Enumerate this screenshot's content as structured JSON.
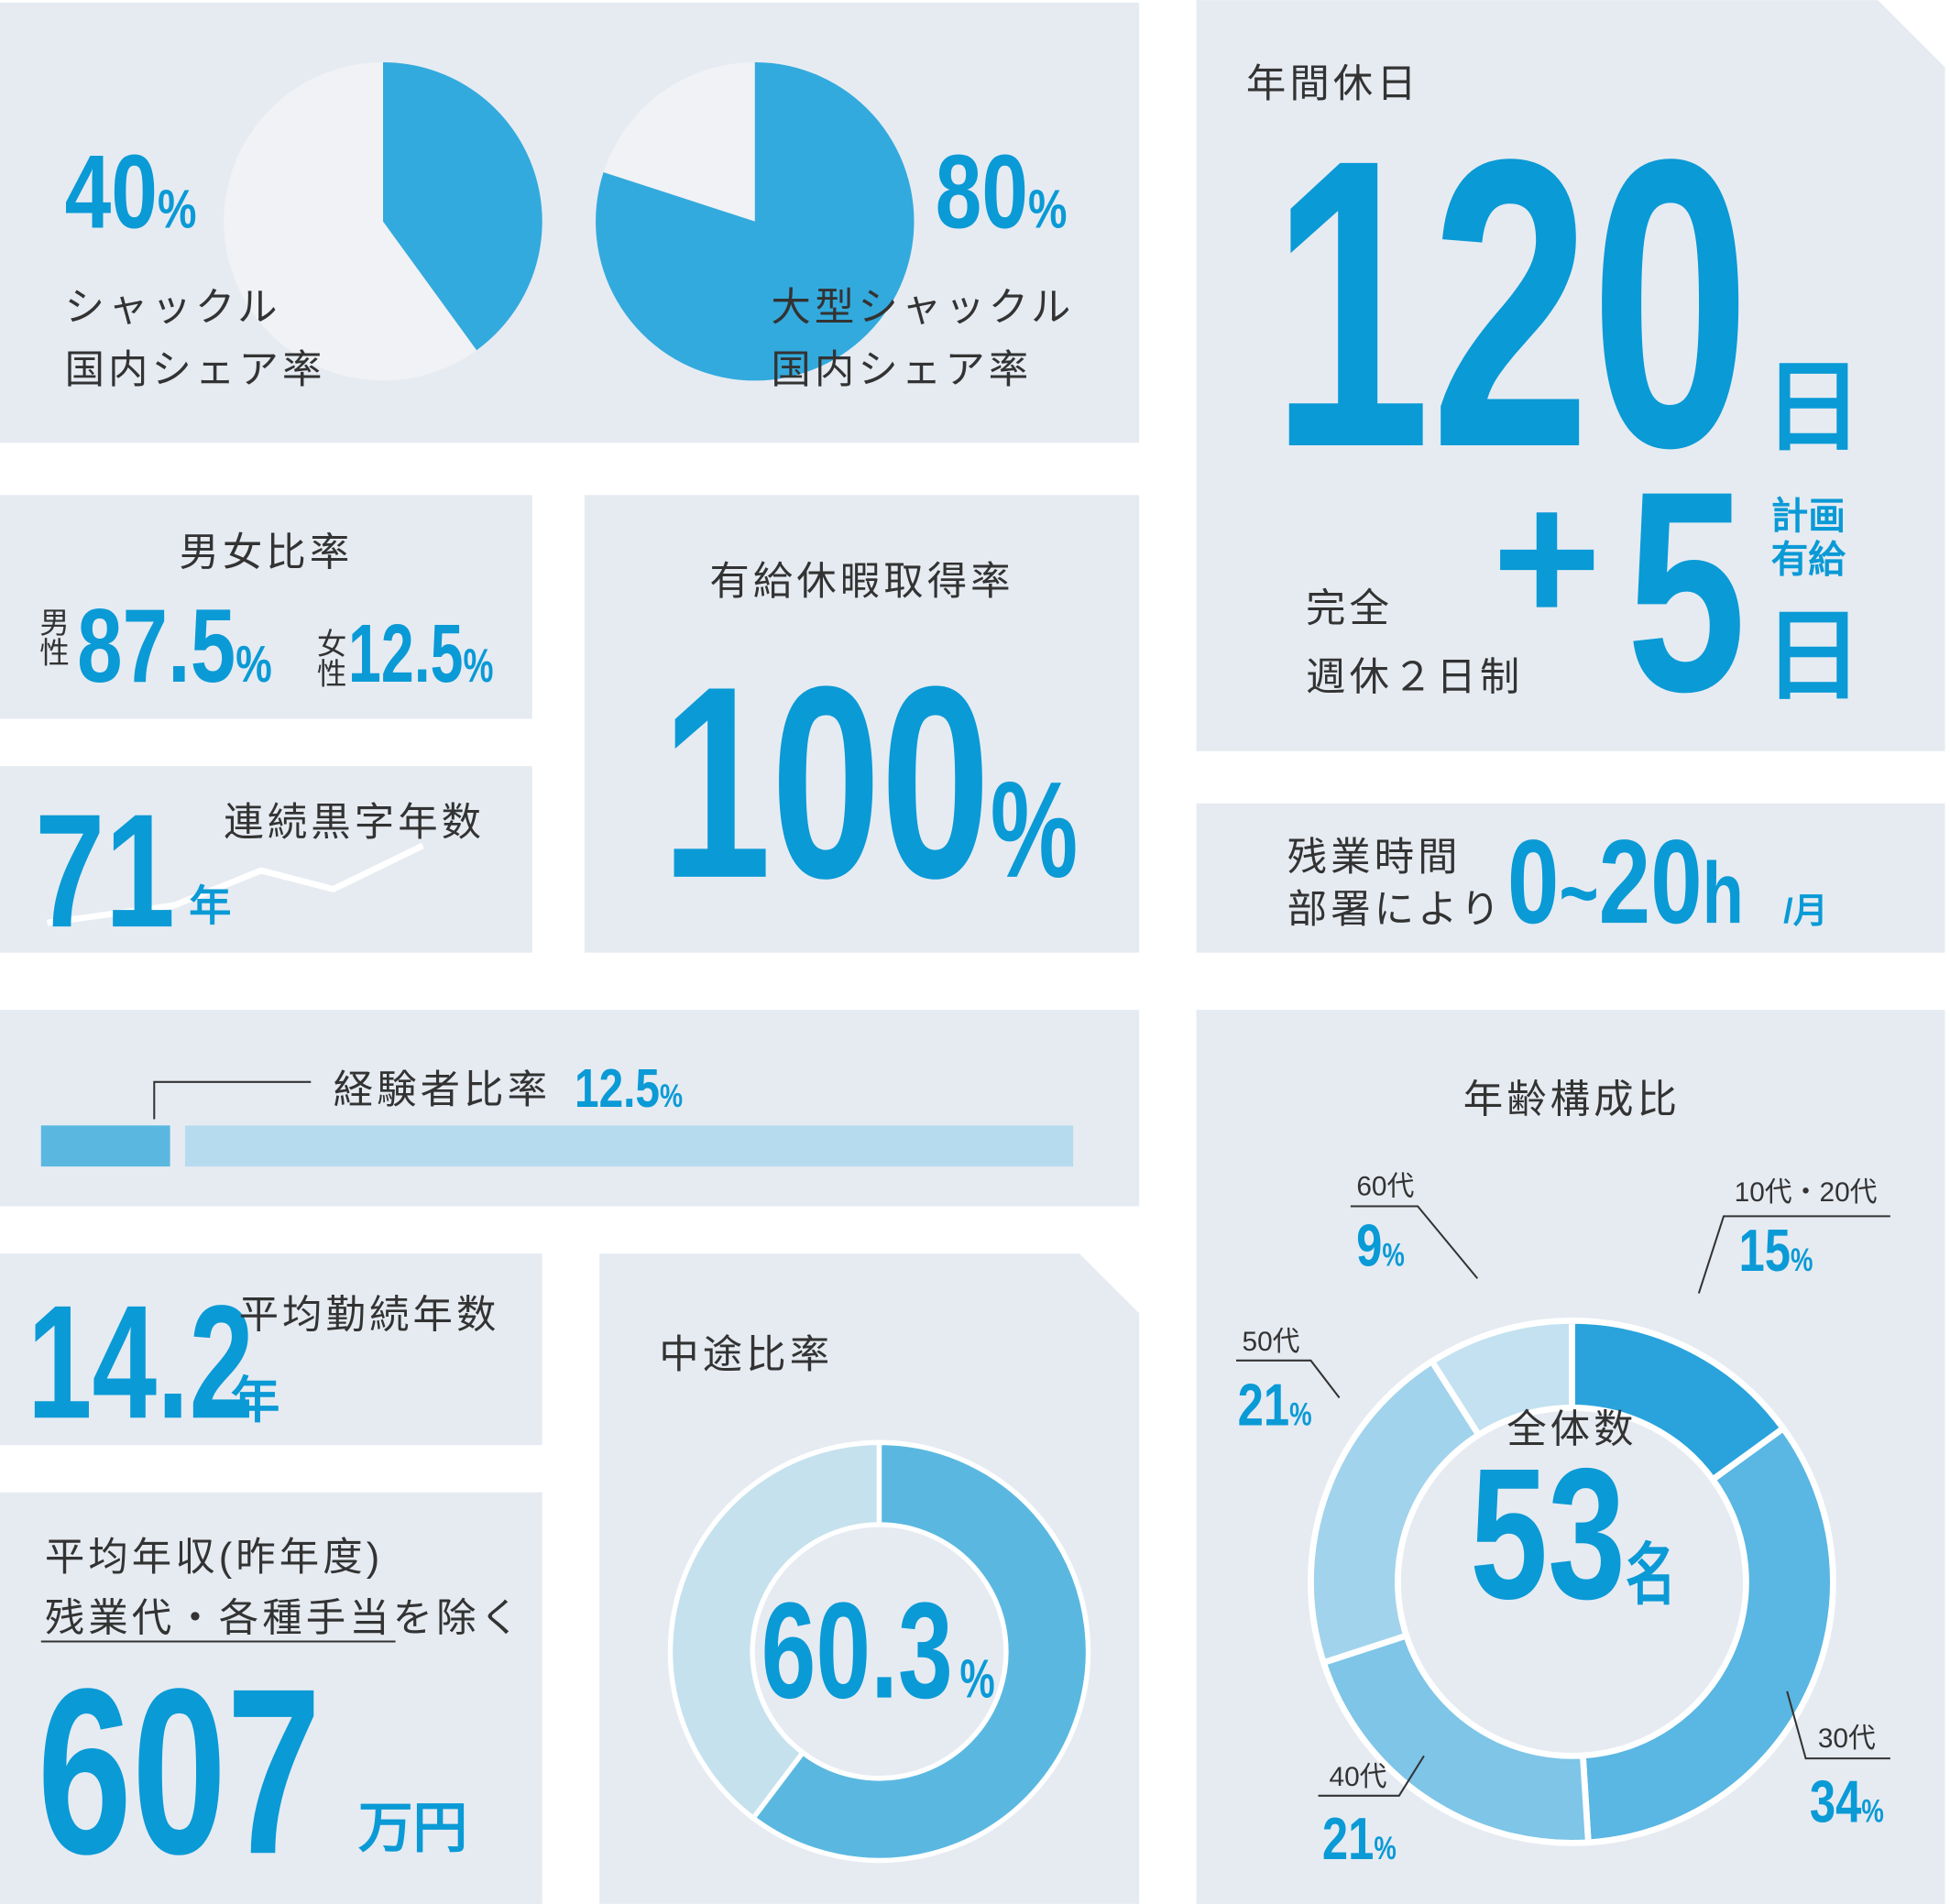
{
  "shares": [
    {
      "value": 40,
      "unit": "%",
      "label": [
        "シャックル",
        "国内シェア率"
      ]
    },
    {
      "value": 80,
      "unit": "%",
      "label": [
        "大型シャックル",
        "国内シェア率"
      ]
    }
  ],
  "gender": {
    "title": "男女比率",
    "male": {
      "label": "男性",
      "value": 87.5
    },
    "female": {
      "label": "女性",
      "value": 12.5
    },
    "unit": "%"
  },
  "profit_years": {
    "title": "連続黒字年数",
    "value": 71,
    "unit": "年"
  },
  "paid_leave": {
    "title": "有給休暇取得率",
    "value": 100,
    "unit": "%"
  },
  "holidays": {
    "title": "年間休日",
    "value": 120,
    "unit": "日",
    "note": [
      "完全",
      "週休２日制"
    ],
    "plus": "+",
    "extra_value": 5,
    "extra_label": [
      "計画",
      "有給"
    ],
    "extra_unit": "日"
  },
  "overtime": {
    "title": [
      "残業時間",
      "部署により"
    ],
    "min": 0,
    "sep": "~",
    "max": 20,
    "unit": "h",
    "per": "/月"
  },
  "experienced": {
    "title": "経験者比率",
    "value": 12.5,
    "unit": "%"
  },
  "tenure": {
    "title": "平均勤続年数",
    "value": 14.2,
    "unit": "年"
  },
  "salary": {
    "title": "平均年収(昨年度)",
    "note": "残業代・各種手当を除く",
    "value": 607,
    "unit": "万円"
  },
  "mid_career": {
    "title": "中途比率",
    "value": 60.3,
    "unit": "%"
  },
  "age": {
    "title": "年齢構成比",
    "total_label": "全体数",
    "total": 53,
    "total_unit": "名",
    "unit": "%",
    "categories": [
      "10代・20代",
      "30代",
      "40代",
      "50代",
      "60代"
    ],
    "values": [
      15,
      34,
      21,
      21,
      9
    ]
  }
}
